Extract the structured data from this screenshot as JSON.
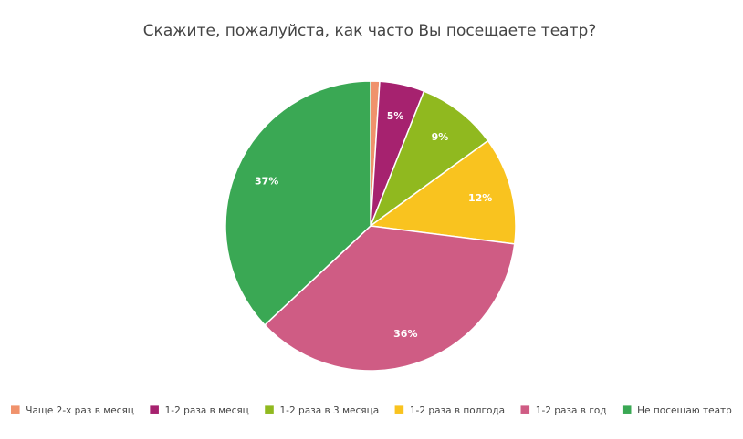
{
  "chart_data": {
    "type": "pie",
    "title": "Скажите, пожалуйста, как часто Вы посещаете театр?",
    "legend_position": "bottom",
    "slices": [
      {
        "name": "Чаще 2-х раз в месяц",
        "value": 1,
        "label": "",
        "color": "#f0926c"
      },
      {
        "name": "1-2 раза в месяц",
        "value": 5,
        "label": "5%",
        "color": "#a6226f"
      },
      {
        "name": "1-2 раза в 3 месяца",
        "value": 9,
        "label": "9%",
        "color": "#90b91f"
      },
      {
        "name": "1-2 раза в полгода",
        "value": 12,
        "label": "12%",
        "color": "#f9c31f"
      },
      {
        "name": "1-2 раза в год",
        "value": 36,
        "label": "36%",
        "color": "#cf5c84"
      },
      {
        "name": "Не посещаю театр",
        "value": 37,
        "label": "37%",
        "color": "#3aa854"
      }
    ]
  }
}
